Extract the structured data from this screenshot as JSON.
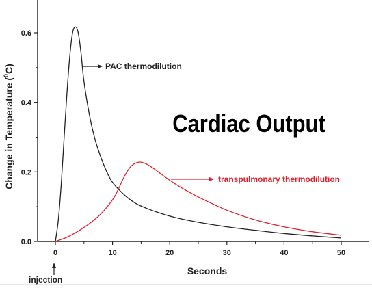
{
  "overlay_title": "Cardiac Output",
  "colors": {
    "pac": "#222222",
    "transpulmonary": "#e0212d",
    "axis": "#222222"
  },
  "chart_data": {
    "type": "line",
    "xlabel": "Seconds",
    "ylabel_main": "Change in Temperature (",
    "ylabel_sup": "0",
    "ylabel_tail": "C)",
    "xlim": [
      -3,
      55
    ],
    "ylim": [
      0,
      0.66
    ],
    "xticks": [
      0,
      10,
      20,
      30,
      40,
      50
    ],
    "yticks": [
      0.0,
      0.2,
      0.4,
      0.6
    ],
    "ytick_labels": [
      "0.0",
      "0.2",
      "0.4",
      "0.6"
    ],
    "series": [
      {
        "name": "PAC thermodilution",
        "x": [
          0,
          0.5,
          1,
          1.5,
          2,
          2.5,
          3,
          3.5,
          4,
          4.5,
          5,
          6,
          7,
          8,
          9,
          10,
          12,
          14,
          16,
          18,
          20,
          22,
          25,
          30,
          35,
          40,
          45,
          50
        ],
        "y": [
          0.0,
          0.06,
          0.16,
          0.29,
          0.42,
          0.53,
          0.6,
          0.617,
          0.6,
          0.54,
          0.46,
          0.36,
          0.29,
          0.24,
          0.2,
          0.17,
          0.135,
          0.11,
          0.095,
          0.083,
          0.073,
          0.065,
          0.055,
          0.042,
          0.032,
          0.023,
          0.016,
          0.01
        ]
      },
      {
        "name": "transpulmonary thermodilution",
        "x": [
          0,
          2,
          4,
          6,
          8,
          10,
          11,
          12,
          13,
          14,
          15,
          16,
          17,
          18,
          20,
          22,
          25,
          30,
          35,
          40,
          45,
          50
        ],
        "y": [
          0.0,
          0.012,
          0.03,
          0.052,
          0.08,
          0.12,
          0.15,
          0.185,
          0.212,
          0.225,
          0.228,
          0.222,
          0.212,
          0.2,
          0.176,
          0.155,
          0.128,
          0.09,
          0.062,
          0.042,
          0.028,
          0.018
        ]
      }
    ],
    "annotations": [
      {
        "text": "PAC thermodilution",
        "series": 0
      },
      {
        "text": "transpulmonary thermodilution",
        "series": 1
      },
      {
        "text": "injection",
        "x": 0
      }
    ]
  }
}
